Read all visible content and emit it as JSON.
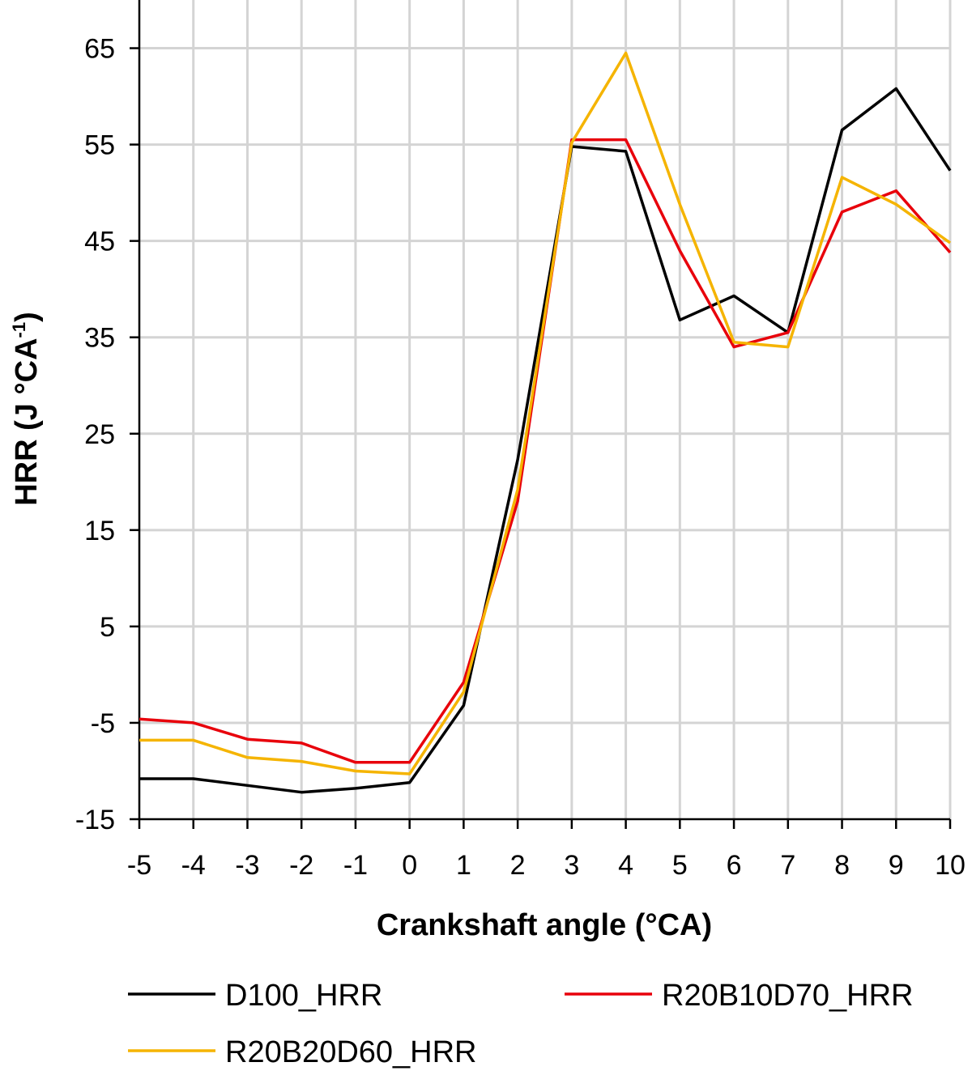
{
  "chart_data": {
    "type": "line",
    "xlabel": "Crankshaft angle (°CA)",
    "ylabel_main": "HRR  (J °CA",
    "ylabel_sup": "-1",
    "ylabel_end": ")",
    "x": [
      -5,
      -4,
      -3,
      -2,
      -1,
      0,
      1,
      2,
      3,
      4,
      5,
      6,
      7,
      8,
      9,
      10
    ],
    "xlim": [
      -5,
      10
    ],
    "ylim": [
      -15,
      70
    ],
    "y_ticks": [
      -15,
      -5,
      5,
      15,
      25,
      35,
      45,
      55,
      65
    ],
    "grid": true,
    "legend_position": "bottom",
    "series": [
      {
        "name": "D100_HRR",
        "color": "#000000",
        "values": [
          -10.8,
          -10.8,
          -11.5,
          -12.2,
          -11.8,
          -11.2,
          -3.2,
          22.3,
          54.8,
          54.3,
          36.8,
          39.3,
          35.5,
          56.5,
          60.8,
          52.3
        ]
      },
      {
        "name": "R20B10D70_HRR",
        "color": "#e8000b",
        "values": [
          -4.6,
          -5.0,
          -6.7,
          -7.1,
          -9.1,
          -9.1,
          -0.8,
          18.0,
          55.5,
          55.5,
          44.0,
          34.0,
          35.5,
          48.0,
          50.2,
          43.8
        ]
      },
      {
        "name": "R20B20D60_HRR",
        "color": "#f5b400",
        "values": [
          -6.8,
          -6.8,
          -8.6,
          -9.0,
          -10.0,
          -10.3,
          -1.8,
          19.2,
          55.2,
          64.5,
          48.8,
          34.5,
          34.0,
          51.6,
          48.8,
          44.8
        ]
      }
    ]
  }
}
